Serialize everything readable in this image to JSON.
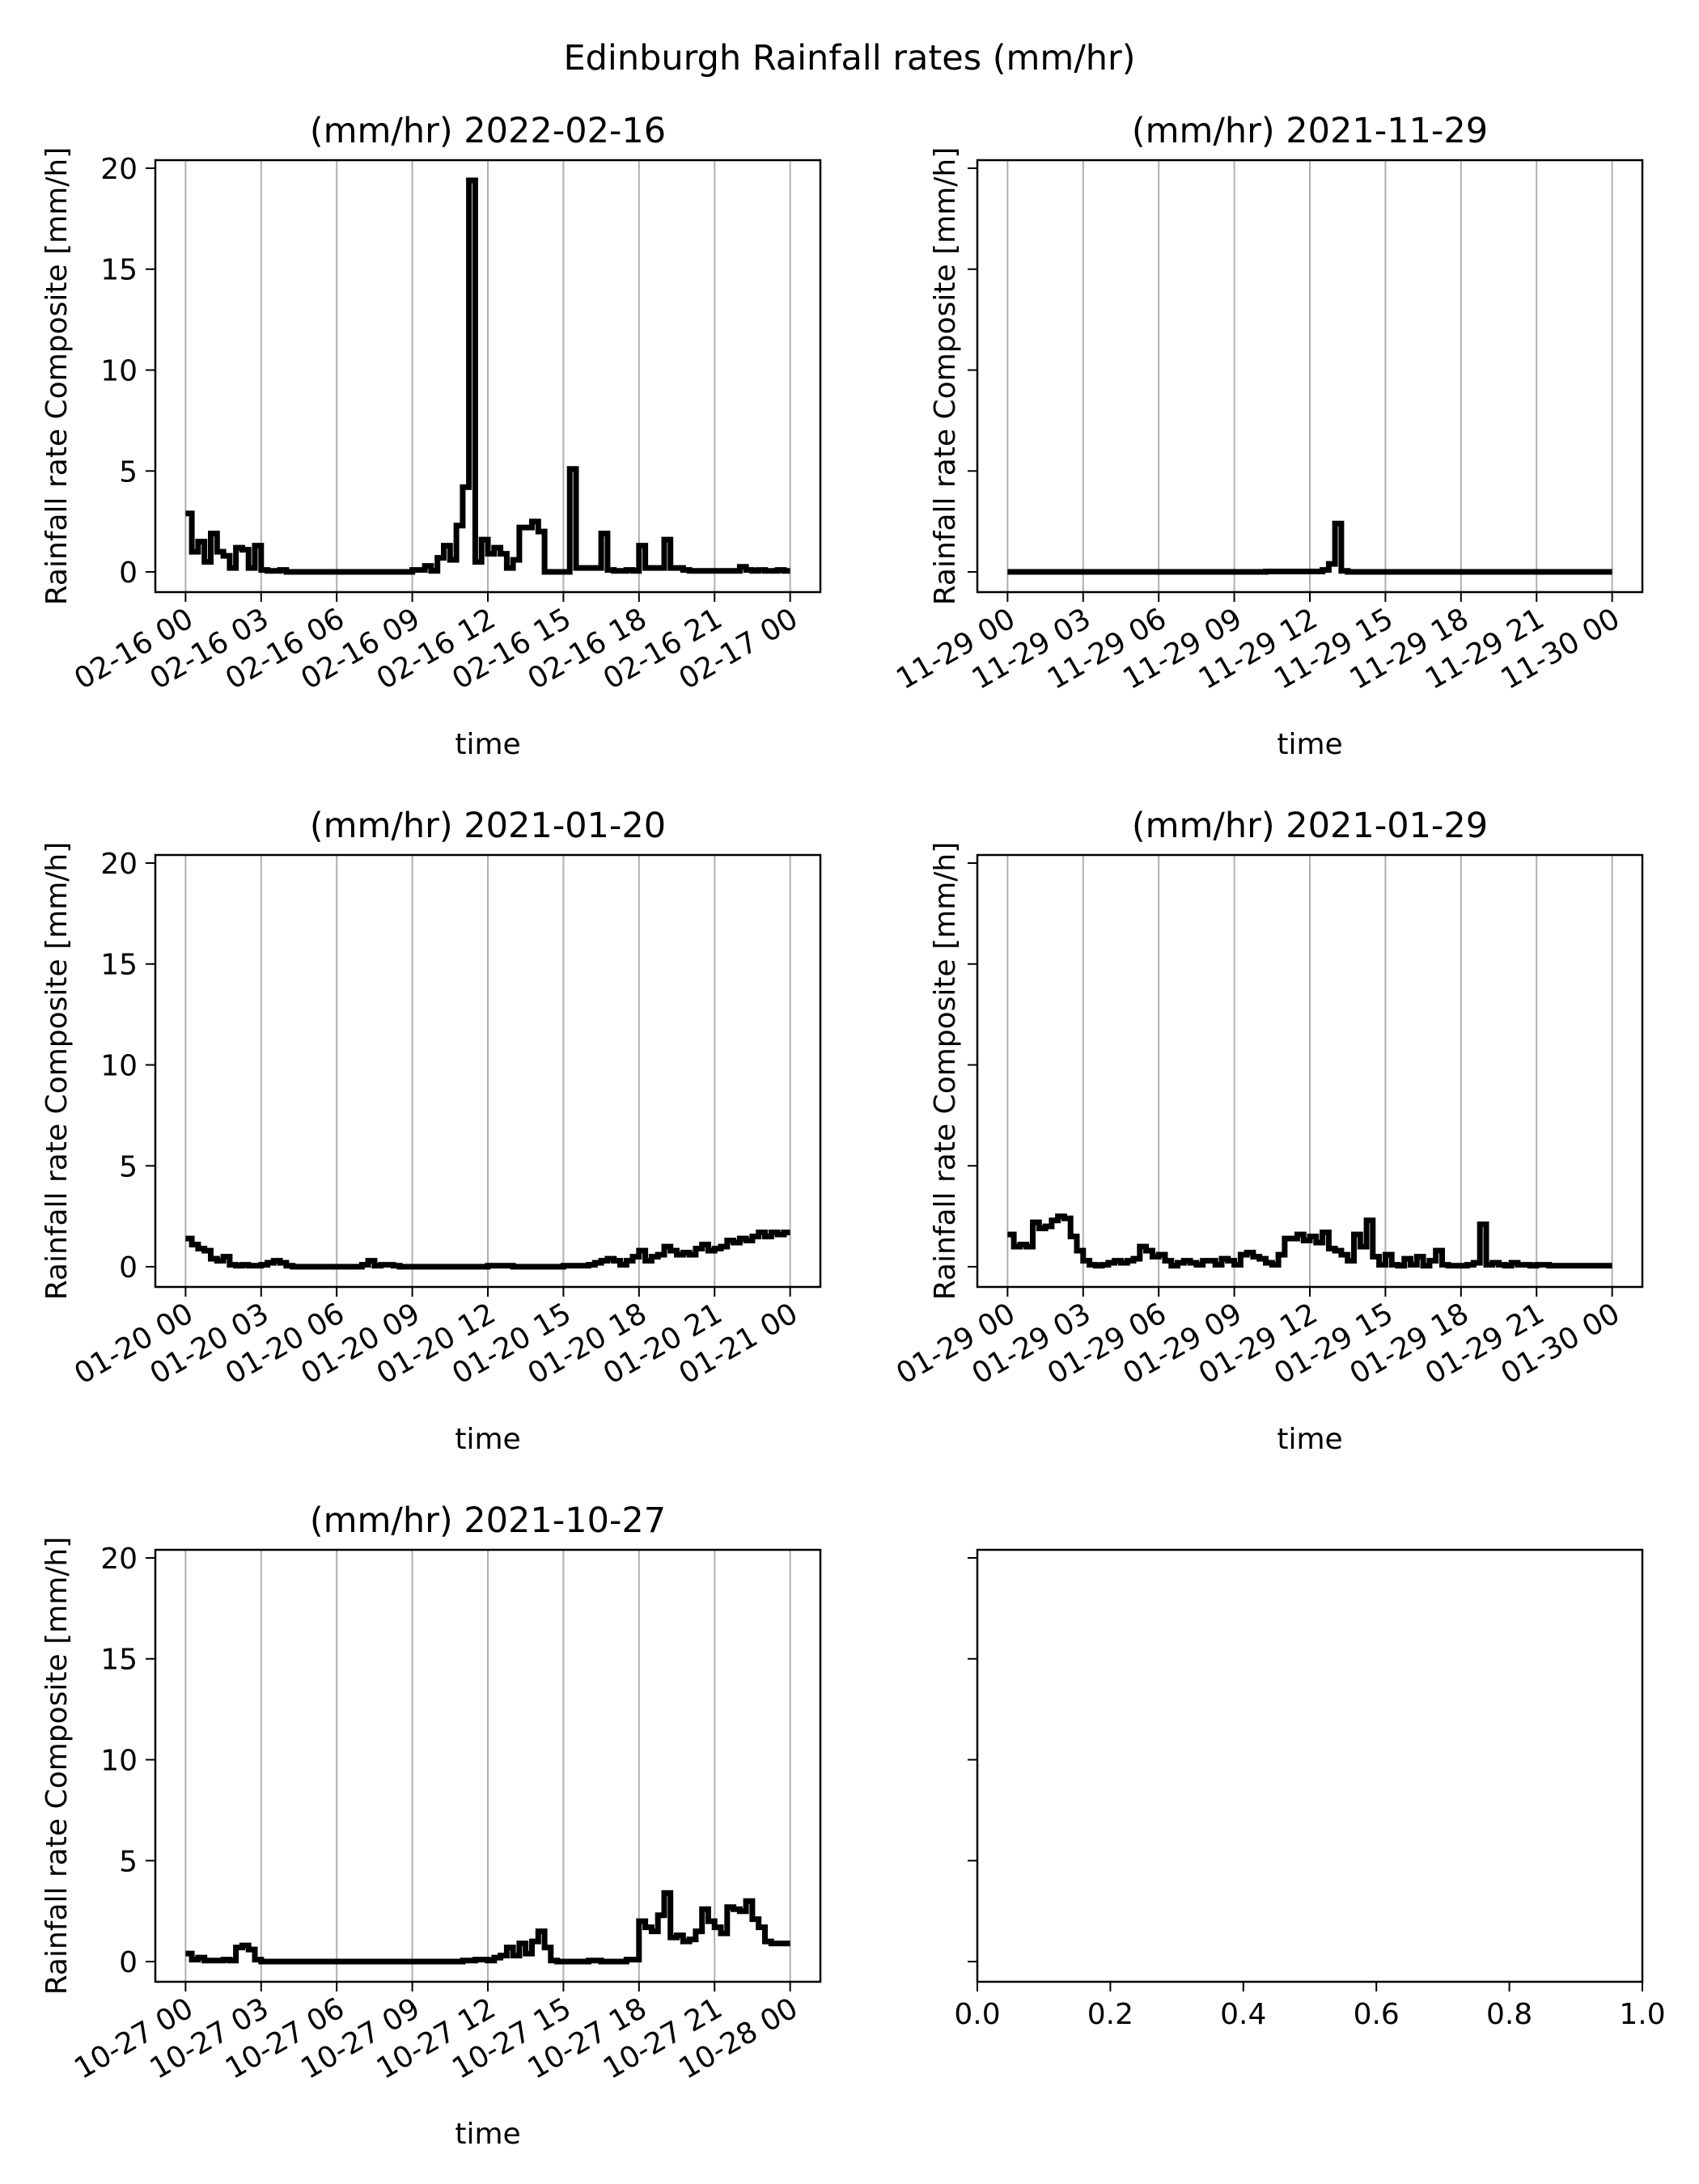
{
  "figure": {
    "title": "Edinburgh Rainfall rates (mm/hr)"
  },
  "chart_data": [
    {
      "type": "line",
      "title": "(mm/hr) 2022-02-16",
      "xlabel": "time",
      "ylabel": "Rainfall rate Composite [mm/h]",
      "xlim": [
        "2022-02-16 00:00",
        "2022-02-17 00:00"
      ],
      "ylim": [
        -1,
        20.4
      ],
      "yticks": [
        0,
        5,
        10,
        15,
        20
      ],
      "xtick_labels": [
        "02-16 00",
        "02-16 03",
        "02-16 06",
        "02-16 09",
        "02-16 12",
        "02-16 15",
        "02-16 18",
        "02-16 21",
        "02-17 00"
      ],
      "grid": "x",
      "series": [
        {
          "x": [
            0,
            0.25,
            0.5,
            0.75,
            1,
            1.25,
            1.5,
            1.75,
            2,
            2.25,
            2.5,
            2.75,
            3,
            3.25,
            3.5,
            3.75,
            4,
            5,
            6,
            7,
            8,
            9,
            9.25,
            9.5,
            9.75,
            10,
            10.25,
            10.5,
            10.75,
            11,
            11.25,
            11.5,
            11.75,
            12,
            12.25,
            12.5,
            12.75,
            13,
            13.25,
            13.5,
            13.75,
            14,
            14.25,
            14.5,
            14.75,
            15,
            15.25,
            15.5,
            15.75,
            16,
            16.25,
            16.5,
            16.75,
            17,
            17.25,
            17.5,
            17.75,
            18,
            18.25,
            18.5,
            18.75,
            19,
            19.25,
            19.5,
            19.75,
            20,
            20.25,
            20.5,
            20.75,
            21,
            21.25,
            21.5,
            21.75,
            22,
            22.25,
            22.5,
            22.75,
            23,
            23.25,
            23.5,
            23.75,
            24
          ],
          "y": [
            2.9,
            1.0,
            1.5,
            0.5,
            1.9,
            1.0,
            0.8,
            0.2,
            1.2,
            1.1,
            0.2,
            1.3,
            0.1,
            0.05,
            0.05,
            0.1,
            0,
            0,
            0,
            0,
            0,
            0.1,
            0.1,
            0.3,
            0.05,
            0.7,
            1.3,
            0.6,
            2.3,
            4.2,
            19.4,
            0.5,
            1.6,
            0.9,
            1.2,
            0.9,
            0.2,
            0.6,
            2.2,
            2.2,
            2.5,
            2.0,
            0,
            0,
            0,
            0,
            5.1,
            0.2,
            0.2,
            0.2,
            0.2,
            1.9,
            0.1,
            0.05,
            0.05,
            0.1,
            0.05,
            1.3,
            0.2,
            0.2,
            0.2,
            1.6,
            0.2,
            0.2,
            0.1,
            0.05,
            0.05,
            0.05,
            0.05,
            0.05,
            0.05,
            0.05,
            0.05,
            0.25,
            0.1,
            0.05,
            0.1,
            0.05,
            0.05,
            0.1,
            0.05,
            0.05
          ]
        }
      ]
    },
    {
      "type": "line",
      "title": "(mm/hr) 2021-11-29",
      "xlabel": "time",
      "ylabel": "Rainfall rate Composite [mm/h]",
      "xlim": [
        "2021-11-29 00:00",
        "2021-11-30 00:00"
      ],
      "ylim": [
        -1,
        20.4
      ],
      "yticks": [
        0,
        5,
        10,
        15,
        20
      ],
      "xtick_labels": [
        "11-29 00",
        "11-29 03",
        "11-29 06",
        "11-29 09",
        "11-29 12",
        "11-29 15",
        "11-29 18",
        "11-29 21",
        "11-30 00"
      ],
      "grid": "x",
      "series": [
        {
          "x": [
            0,
            10,
            10.25,
            12.5,
            12.75,
            13,
            13.25,
            13.5,
            24
          ],
          "y": [
            0,
            0,
            0.02,
            0.1,
            0.4,
            2.4,
            0.05,
            0,
            0
          ]
        }
      ]
    },
    {
      "type": "line",
      "title": "(mm/hr) 2021-01-20",
      "xlabel": "time",
      "ylabel": "Rainfall rate Composite [mm/h]",
      "xlim": [
        "2021-01-20 00:00",
        "2021-01-21 00:00"
      ],
      "ylim": [
        -1,
        20.4
      ],
      "yticks": [
        0,
        5,
        10,
        15,
        20
      ],
      "xtick_labels": [
        "01-20 00",
        "01-20 03",
        "01-20 06",
        "01-20 09",
        "01-20 12",
        "01-20 15",
        "01-20 18",
        "01-20 21",
        "01-21 00"
      ],
      "grid": "x",
      "series": [
        {
          "x": [
            0,
            0.25,
            0.5,
            0.75,
            1,
            1.25,
            1.5,
            1.75,
            2,
            2.25,
            2.5,
            2.75,
            3,
            3.25,
            3.5,
            3.75,
            4,
            4.25,
            4.5,
            4.75,
            5,
            6,
            7,
            7.25,
            7.5,
            7.75,
            8,
            8.25,
            8.5,
            8.75,
            9,
            10,
            11,
            12,
            13,
            14,
            15,
            15.5,
            16,
            16.25,
            16.5,
            16.75,
            17,
            17.25,
            17.5,
            17.75,
            18,
            18.25,
            18.5,
            18.75,
            19,
            19.25,
            19.5,
            19.75,
            20,
            20.25,
            20.5,
            20.75,
            21,
            21.25,
            21.5,
            21.75,
            22,
            22.25,
            22.5,
            22.75,
            23,
            23.25,
            23.5,
            23.75,
            24
          ],
          "y": [
            1.4,
            1.1,
            0.9,
            0.8,
            0.4,
            0.3,
            0.5,
            0.1,
            0.05,
            0.1,
            0.05,
            0.05,
            0.1,
            0.2,
            0.3,
            0.2,
            0.05,
            0,
            0,
            0,
            0,
            0,
            0.1,
            0.3,
            0.05,
            0.1,
            0.1,
            0.05,
            0,
            0,
            0,
            0,
            0,
            0.05,
            0,
            0,
            0.05,
            0.05,
            0.1,
            0.2,
            0.3,
            0.4,
            0.3,
            0.1,
            0.3,
            0.5,
            0.8,
            0.3,
            0.5,
            0.6,
            1.0,
            0.8,
            0.6,
            0.7,
            0.6,
            0.9,
            1.1,
            0.8,
            0.9,
            1.0,
            1.3,
            1.2,
            1.4,
            1.3,
            1.5,
            1.7,
            1.5,
            1.7,
            1.6,
            1.7,
            1.7
          ]
        }
      ]
    },
    {
      "type": "line",
      "title": "(mm/hr) 2021-01-29",
      "xlabel": "time",
      "ylabel": "Rainfall rate Composite [mm/h]",
      "xlim": [
        "2021-01-29 00:00",
        "2021-01-30 00:00"
      ],
      "ylim": [
        -1,
        20.4
      ],
      "yticks": [
        0,
        5,
        10,
        15,
        20
      ],
      "xtick_labels": [
        "01-29 00",
        "01-29 03",
        "01-29 06",
        "01-29 09",
        "01-29 12",
        "01-29 15",
        "01-29 18",
        "01-29 21",
        "01-30 00"
      ],
      "grid": "x",
      "series": [
        {
          "x": [
            0,
            0.25,
            0.5,
            0.75,
            1,
            1.25,
            1.5,
            1.75,
            2,
            2.25,
            2.5,
            2.75,
            3,
            3.25,
            3.5,
            3.75,
            4,
            4.25,
            4.5,
            4.75,
            5,
            5.25,
            5.5,
            5.75,
            6,
            6.25,
            6.5,
            6.75,
            7,
            7.25,
            7.5,
            7.75,
            8,
            8.25,
            8.5,
            8.75,
            9,
            9.25,
            9.5,
            9.75,
            10,
            10.25,
            10.5,
            10.75,
            11,
            11.25,
            11.5,
            11.75,
            12,
            12.25,
            12.5,
            12.75,
            13,
            13.25,
            13.5,
            13.75,
            14,
            14.25,
            14.5,
            14.75,
            15,
            15.25,
            15.5,
            15.75,
            16,
            16.25,
            16.5,
            16.75,
            17,
            17.25,
            17.5,
            17.75,
            18,
            18.25,
            18.5,
            18.75,
            19,
            19.25,
            19.5,
            19.75,
            20,
            20.25,
            20.5,
            20.75,
            21,
            21.5,
            22,
            22.5,
            23,
            23.25,
            23.5,
            23.75,
            24
          ],
          "y": [
            1.6,
            1.0,
            1.1,
            1.0,
            2.2,
            1.9,
            2.0,
            2.3,
            2.5,
            2.4,
            1.5,
            0.8,
            0.3,
            0.1,
            0.05,
            0.1,
            0.2,
            0.3,
            0.2,
            0.3,
            0.4,
            1.0,
            0.8,
            0.5,
            0.6,
            0.3,
            0.05,
            0.2,
            0.3,
            0.2,
            0.1,
            0.3,
            0.3,
            0.1,
            0.4,
            0.3,
            0.1,
            0.6,
            0.7,
            0.5,
            0.4,
            0.2,
            0.1,
            0.6,
            1.4,
            1.4,
            1.6,
            1.3,
            1.5,
            1.2,
            1.7,
            0.9,
            0.8,
            0.6,
            0.3,
            1.6,
            1.0,
            2.3,
            0.5,
            0.1,
            0.6,
            0.1,
            0.05,
            0.4,
            0.1,
            0.5,
            0.05,
            0.3,
            0.8,
            0.1,
            0.05,
            0.05,
            0.05,
            0.1,
            0.2,
            2.1,
            0.1,
            0.2,
            0.1,
            0.05,
            0.2,
            0.1,
            0.1,
            0.05,
            0.1,
            0.05,
            0.05,
            0.05,
            0.05,
            0.05,
            0.05,
            0.05,
            0.05
          ]
        }
      ]
    },
    {
      "type": "line",
      "title": "(mm/hr) 2021-10-27",
      "xlabel": "time",
      "ylabel": "Rainfall rate Composite [mm/h]",
      "xlim": [
        "2021-10-27 00:00",
        "2021-10-28 00:00"
      ],
      "ylim": [
        -1,
        20.4
      ],
      "yticks": [
        0,
        5,
        10,
        15,
        20
      ],
      "xtick_labels": [
        "10-27 00",
        "10-27 03",
        "10-27 06",
        "10-27 09",
        "10-27 12",
        "10-27 15",
        "10-27 18",
        "10-27 21",
        "10-28 00"
      ],
      "grid": "x",
      "series": [
        {
          "x": [
            0,
            0.25,
            0.5,
            0.75,
            1,
            1.25,
            1.5,
            1.75,
            2,
            2.25,
            2.5,
            2.75,
            3,
            4,
            5,
            6,
            7,
            8,
            9,
            10,
            11,
            11.5,
            12,
            12.25,
            12.5,
            12.75,
            13,
            13.25,
            13.5,
            13.75,
            14,
            14.25,
            14.5,
            14.75,
            15,
            15.5,
            16,
            16.5,
            17,
            17.5,
            18,
            18.25,
            18.5,
            18.75,
            19,
            19.25,
            19.5,
            19.75,
            20,
            20.25,
            20.5,
            20.75,
            21,
            21.25,
            21.5,
            21.75,
            22,
            22.25,
            22.5,
            22.75,
            23,
            23.25,
            23.5,
            23.75,
            24
          ],
          "y": [
            0.4,
            0.1,
            0.2,
            0.05,
            0.05,
            0.05,
            0.1,
            0.05,
            0.7,
            0.8,
            0.6,
            0.1,
            0,
            0,
            0,
            0,
            0,
            0,
            0,
            0,
            0.05,
            0.1,
            0.05,
            0.2,
            0.3,
            0.7,
            0.3,
            0.9,
            0.4,
            1.0,
            1.5,
            0.7,
            0.05,
            0,
            0,
            0,
            0.05,
            0,
            0,
            0.1,
            2.0,
            1.7,
            1.5,
            2.3,
            3.4,
            1.2,
            1.3,
            1.0,
            1.1,
            1.5,
            2.6,
            2.0,
            1.7,
            1.4,
            2.7,
            2.6,
            2.5,
            3.0,
            2.1,
            1.7,
            1.0,
            0.9,
            0.9,
            0.9,
            0.9
          ]
        }
      ]
    },
    {
      "type": "line",
      "title": "",
      "xlabel": "",
      "ylabel": "",
      "xlim": [
        0.0,
        1.0
      ],
      "ylim": [
        -1,
        20.4
      ],
      "yticks": [
        0,
        5,
        10,
        15,
        20
      ],
      "xtick_labels": [
        "0.0",
        "0.2",
        "0.4",
        "0.6",
        "0.8",
        "1.0"
      ],
      "grid": "none",
      "series": []
    }
  ]
}
